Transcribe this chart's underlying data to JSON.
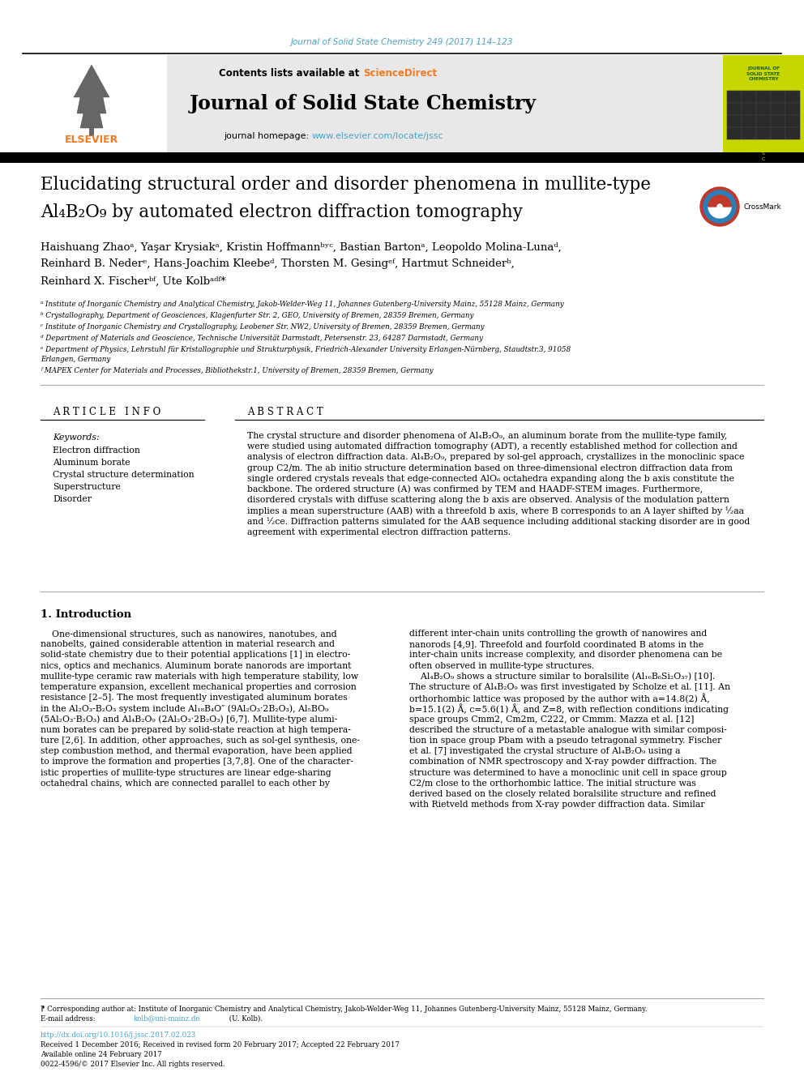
{
  "journal_ref": "Journal of Solid State Chemistry 249 (2017) 114–123",
  "journal_ref_color": "#4aa3c8",
  "journal_name": "Journal of Solid State Chemistry",
  "contents_line": "Contents lists available at ",
  "sciencedirect": "ScienceDirect",
  "sciencedirect_color": "#f47920",
  "homepage_line": "journal homepage: ",
  "homepage_url": "www.elsevier.com/locate/jssc",
  "homepage_url_color": "#4aa3c8",
  "title_line1": "Elucidating structural order and disorder phenomena in mullite-type",
  "title_line2": "Al₄B₂O₉ by automated electron diffraction tomography",
  "authors": "Haishuang Zhaoᵃ, Yaşar Krysiakᵃ, Kristin Hoffmannᵇʸᶜ, Bastian Bartonᵃ, Leopoldo Molina-Lunaᵈ,",
  "authors2": "Reinhard B. Nederᵉ, Hans-Joachim Kleebeᵈ, Thorsten M. Gesingᵉᶠ, Hartmut Schneiderᵇ,",
  "authors3": "Reinhard X. Fischerᵇᶠ, Ute Kolbᵃᵈᶠ*",
  "aff_a": "ᵃ Institute of Inorganic Chemistry and Analytical Chemistry, Jakob-Welder-Weg 11, Johannes Gutenberg-University Mainz, 55128 Mainz, Germany",
  "aff_b": "ᵇ Crystallography, Department of Geosciences, Klagenfurter Str. 2, GEO, University of Bremen, 28359 Bremen, Germany",
  "aff_c": "ᶜ Institute of Inorganic Chemistry and Crystallography, Leobener Str. NW2, University of Bremen, 28359 Bremen, Germany",
  "aff_d": "ᵈ Department of Materials and Geoscience, Technische Universität Darmstadt, Petersenstr. 23, 64287 Darmstadt, Germany",
  "aff_e": "ᵉ Department of Physics, Lehrstuhl für Kristallographie und Strukturphysik, Friedrich-Alexander University Erlangen-Nürnberg, Staudtstr.3, 91058",
  "aff_e2": "Erlangen, Germany",
  "aff_f": "ᶠ MAPEX Center for Materials and Processes, Bibliothekstr.1, University of Bremen, 28359 Bremen, Germany",
  "article_info_header": "A R T I C L E   I N F O",
  "abstract_header": "A B S T R A C T",
  "keywords_label": "Keywords:",
  "keywords": [
    "Electron diffraction",
    "Aluminum borate",
    "Crystal structure determination",
    "Superstructure",
    "Disorder"
  ],
  "intro_header": "1. Introduction",
  "footer_text1": "⁋ Corresponding author at: Institute of Inorganic Chemistry and Analytical Chemistry, Jakob-Welder-Weg 11, Johannes Gutenberg-University Mainz, 55128 Mainz, Germany.",
  "footer_text2": "E-mail address: kolb@uni-mainz.de (U. Kolb).",
  "footer_email": "kolb@uni-mainz.de",
  "footer_text3": "http://dx.doi.org/10.1016/j.jssc.2017.02.023",
  "footer_text4": "Received 1 December 2016; Received in revised form 20 February 2017; Accepted 22 February 2017",
  "footer_text5": "Available online 24 February 2017",
  "footer_text6": "0022-4596/© 2017 Elsevier Inc. All rights reserved.",
  "elsevier_color": "#f47920",
  "link_color": "#4aa3c8",
  "cover_bg": "#c8d600",
  "cover_text_color": "#1a5c1a",
  "black": "#000000",
  "grey_bg": "#e8e8e8"
}
